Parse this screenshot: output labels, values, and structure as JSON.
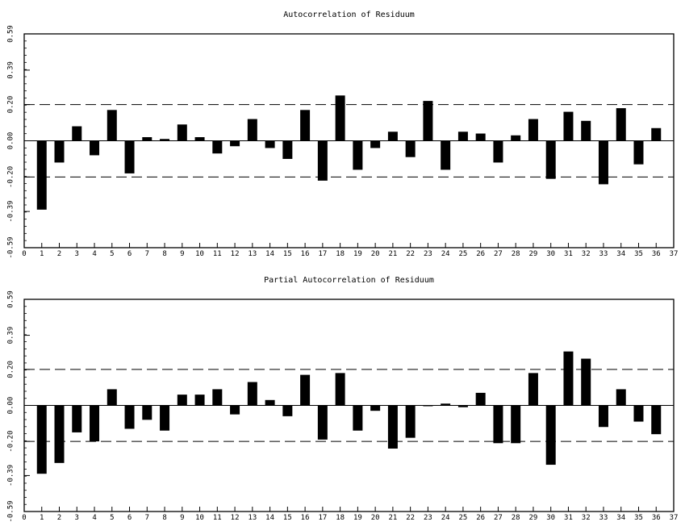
{
  "chart_data": [
    {
      "type": "bar",
      "title": "Autocorrelation of Residuum",
      "xlabel": "",
      "ylabel": "",
      "xlim": [
        0,
        37
      ],
      "ylim": [
        -0.59,
        0.59
      ],
      "x_ticks": [
        "0",
        "1",
        "2",
        "3",
        "4",
        "5",
        "6",
        "7",
        "8",
        "9",
        "10",
        "11",
        "12",
        "13",
        "14",
        "15",
        "16",
        "17",
        "18",
        "19",
        "20",
        "21",
        "22",
        "23",
        "24",
        "25",
        "26",
        "27",
        "28",
        "29",
        "30",
        "31",
        "32",
        "33",
        "34",
        "35",
        "36",
        "37"
      ],
      "y_ticks": [
        {
          "value": 0.59,
          "label": "0.59"
        },
        {
          "value": 0.39,
          "label": "0.39"
        },
        {
          "value": 0.2,
          "label": "0.20"
        },
        {
          "value": 0.0,
          "label": "0.00"
        },
        {
          "value": -0.2,
          "label": "-0.20"
        },
        {
          "value": -0.39,
          "label": "-0.39"
        },
        {
          "value": -0.59,
          "label": "-0.59"
        }
      ],
      "confidence_band": [
        0.2,
        -0.2
      ],
      "lags": [
        1,
        2,
        3,
        4,
        5,
        6,
        7,
        8,
        9,
        10,
        11,
        12,
        13,
        14,
        15,
        16,
        17,
        18,
        19,
        20,
        21,
        22,
        23,
        24,
        25,
        26,
        27,
        28,
        29,
        30,
        31,
        32,
        33,
        34,
        35,
        36
      ],
      "values": [
        -0.38,
        -0.12,
        0.08,
        -0.08,
        0.17,
        -0.18,
        0.02,
        0.01,
        0.09,
        0.02,
        -0.07,
        -0.03,
        0.12,
        -0.04,
        -0.1,
        0.17,
        -0.22,
        0.25,
        -0.16,
        -0.04,
        0.05,
        -0.09,
        0.22,
        -0.16,
        0.05,
        0.04,
        -0.12,
        0.03,
        0.12,
        -0.21,
        0.16,
        0.11,
        -0.24,
        0.18,
        -0.13,
        0.07
      ],
      "grid": false,
      "bar_color": "#000000"
    },
    {
      "type": "bar",
      "title": "Partial Autocorrelation of Residuum",
      "xlabel": "",
      "ylabel": "",
      "xlim": [
        0,
        37
      ],
      "ylim": [
        -0.59,
        0.59
      ],
      "x_ticks": [
        "0",
        "1",
        "2",
        "3",
        "4",
        "5",
        "6",
        "7",
        "8",
        "9",
        "10",
        "11",
        "12",
        "13",
        "14",
        "15",
        "16",
        "17",
        "18",
        "19",
        "20",
        "21",
        "22",
        "23",
        "24",
        "25",
        "26",
        "27",
        "28",
        "29",
        "30",
        "31",
        "32",
        "33",
        "34",
        "35",
        "36",
        "37"
      ],
      "y_ticks": [
        {
          "value": 0.59,
          "label": "0.59"
        },
        {
          "value": 0.39,
          "label": "0.39"
        },
        {
          "value": 0.2,
          "label": "0.20"
        },
        {
          "value": 0.0,
          "label": "0.00"
        },
        {
          "value": -0.2,
          "label": "-0.20"
        },
        {
          "value": -0.39,
          "label": "-0.39"
        },
        {
          "value": -0.59,
          "label": "-0.59"
        }
      ],
      "confidence_band": [
        0.2,
        -0.2
      ],
      "lags": [
        1,
        2,
        3,
        4,
        5,
        6,
        7,
        8,
        9,
        10,
        11,
        12,
        13,
        14,
        15,
        16,
        17,
        18,
        19,
        20,
        21,
        22,
        23,
        24,
        25,
        26,
        27,
        28,
        29,
        30,
        31,
        32,
        33,
        34,
        35,
        36
      ],
      "values": [
        -0.38,
        -0.32,
        -0.15,
        -0.2,
        0.09,
        -0.13,
        -0.08,
        -0.14,
        0.06,
        0.06,
        0.09,
        -0.05,
        0.13,
        0.03,
        -0.06,
        0.17,
        -0.19,
        0.18,
        -0.14,
        -0.03,
        -0.24,
        -0.18,
        0.0,
        0.01,
        -0.01,
        0.07,
        -0.21,
        -0.21,
        0.18,
        -0.33,
        0.3,
        0.26,
        -0.12,
        0.09,
        -0.09,
        -0.16
      ],
      "grid": false,
      "bar_color": "#000000"
    }
  ]
}
